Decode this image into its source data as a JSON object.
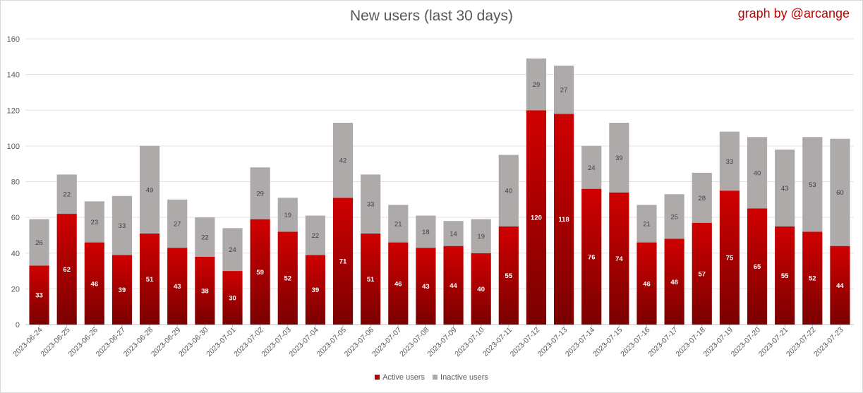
{
  "chart_data": {
    "type": "bar",
    "stacked": true,
    "title": "New users (last 30 days)",
    "credit": "graph by @arcange",
    "categories": [
      "2023-06-24",
      "2023-06-25",
      "2023-06-26",
      "2023-06-27",
      "2023-06-28",
      "2023-06-29",
      "2023-06-30",
      "2023-07-01",
      "2023-07-02",
      "2023-07-03",
      "2023-07-04",
      "2023-07-05",
      "2023-07-06",
      "2023-07-07",
      "2023-07-08",
      "2023-07-09",
      "2023-07-10",
      "2023-07-11",
      "2023-07-12",
      "2023-07-13",
      "2023-07-14",
      "2023-07-15",
      "2023-07-16",
      "2023-07-17",
      "2023-07-18",
      "2023-07-19",
      "2023-07-20",
      "2023-07-21",
      "2023-07-22",
      "2023-07-23"
    ],
    "series": [
      {
        "name": "Active users",
        "color": "#c00000",
        "values": [
          33,
          62,
          46,
          39,
          51,
          43,
          38,
          30,
          59,
          52,
          39,
          71,
          51,
          46,
          43,
          44,
          40,
          55,
          120,
          118,
          76,
          74,
          46,
          48,
          57,
          75,
          65,
          55,
          52,
          44
        ]
      },
      {
        "name": "Inactive users",
        "color": "#aeaaaa",
        "values": [
          26,
          22,
          23,
          33,
          49,
          27,
          22,
          24,
          29,
          19,
          22,
          42,
          33,
          21,
          18,
          14,
          19,
          40,
          29,
          27,
          24,
          39,
          21,
          25,
          28,
          33,
          40,
          43,
          53,
          60
        ]
      }
    ],
    "ylim": [
      0,
      160
    ],
    "yticks": [
      0,
      20,
      40,
      60,
      80,
      100,
      120,
      140,
      160
    ],
    "grid": true,
    "legend_position": "bottom"
  }
}
